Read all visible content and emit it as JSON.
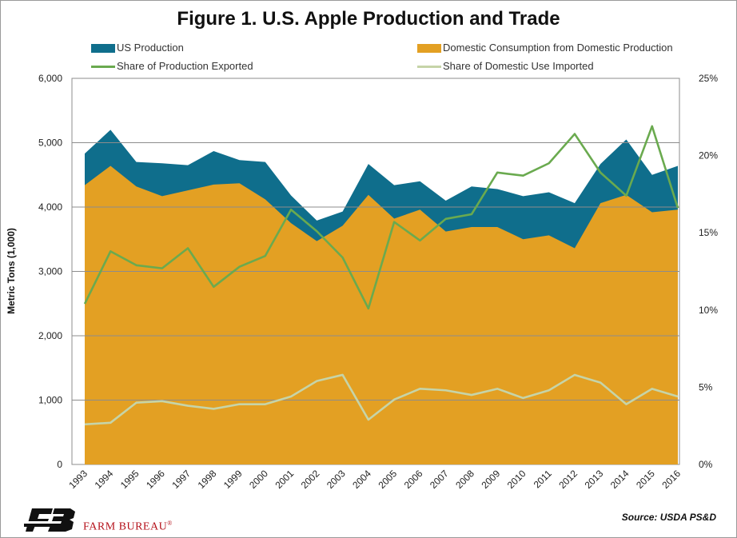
{
  "chart_data": {
    "type": "area",
    "title": "Figure 1. U.S. Apple Production and Trade",
    "categories": [
      "1993",
      "1994",
      "1995",
      "1996",
      "1997",
      "1998",
      "1999",
      "2000",
      "2001",
      "2002",
      "2003",
      "2004",
      "2005",
      "2006",
      "2007",
      "2008",
      "2009",
      "2010",
      "2011",
      "2012",
      "2013",
      "2014",
      "2015",
      "2016"
    ],
    "ylabel": "Metric Tons (1,000)",
    "ylim": [
      0,
      6000
    ],
    "yticks": [
      "0",
      "1,000",
      "2,000",
      "3,000",
      "4,000",
      "5,000",
      "6,000"
    ],
    "y2lim": [
      0,
      25
    ],
    "y2ticks": [
      "0%",
      "5%",
      "10%",
      "15%",
      "20%",
      "25%"
    ],
    "grid": "horizontal",
    "legend_placement": "top",
    "series": [
      {
        "name": "US Production",
        "axis": "left",
        "kind": "area",
        "color": "#0f6e8c",
        "values": [
          4830,
          5200,
          4700,
          4680,
          4650,
          4870,
          4730,
          4700,
          4180,
          3790,
          3930,
          4670,
          4340,
          4400,
          4100,
          4320,
          4280,
          4170,
          4230,
          4060,
          4670,
          5050,
          4500,
          4640
        ]
      },
      {
        "name": "Domestic Consumption from Domestic Production",
        "axis": "left",
        "kind": "area",
        "color": "#e3a023",
        "values": [
          4340,
          4640,
          4320,
          4170,
          4260,
          4350,
          4370,
          4120,
          3750,
          3470,
          3710,
          4190,
          3820,
          3960,
          3620,
          3690,
          3690,
          3500,
          3560,
          3360,
          4060,
          4190,
          3920,
          3960
        ]
      },
      {
        "name": "Share of Production Exported",
        "axis": "right",
        "kind": "line",
        "color": "#6aaa4f",
        "values": [
          10.4,
          13.8,
          12.9,
          12.7,
          14.0,
          11.5,
          12.8,
          13.5,
          16.5,
          15.1,
          13.4,
          10.1,
          15.7,
          14.5,
          15.9,
          16.2,
          18.9,
          18.7,
          19.5,
          21.4,
          18.9,
          17.4,
          21.9,
          16.6
        ]
      },
      {
        "name": "Share of Domestic Use Imported",
        "axis": "right",
        "kind": "line",
        "color": "#c6d4a8",
        "values": [
          2.6,
          2.7,
          4.0,
          4.1,
          3.8,
          3.6,
          3.9,
          3.9,
          4.4,
          5.4,
          5.8,
          2.9,
          4.2,
          4.9,
          4.8,
          4.5,
          4.9,
          4.3,
          4.8,
          5.8,
          5.3,
          3.9,
          4.9,
          4.4
        ]
      }
    ],
    "source": "Source: USDA PS&D"
  },
  "branding": {
    "name": "FARM BUREAU",
    "mark": "®"
  }
}
